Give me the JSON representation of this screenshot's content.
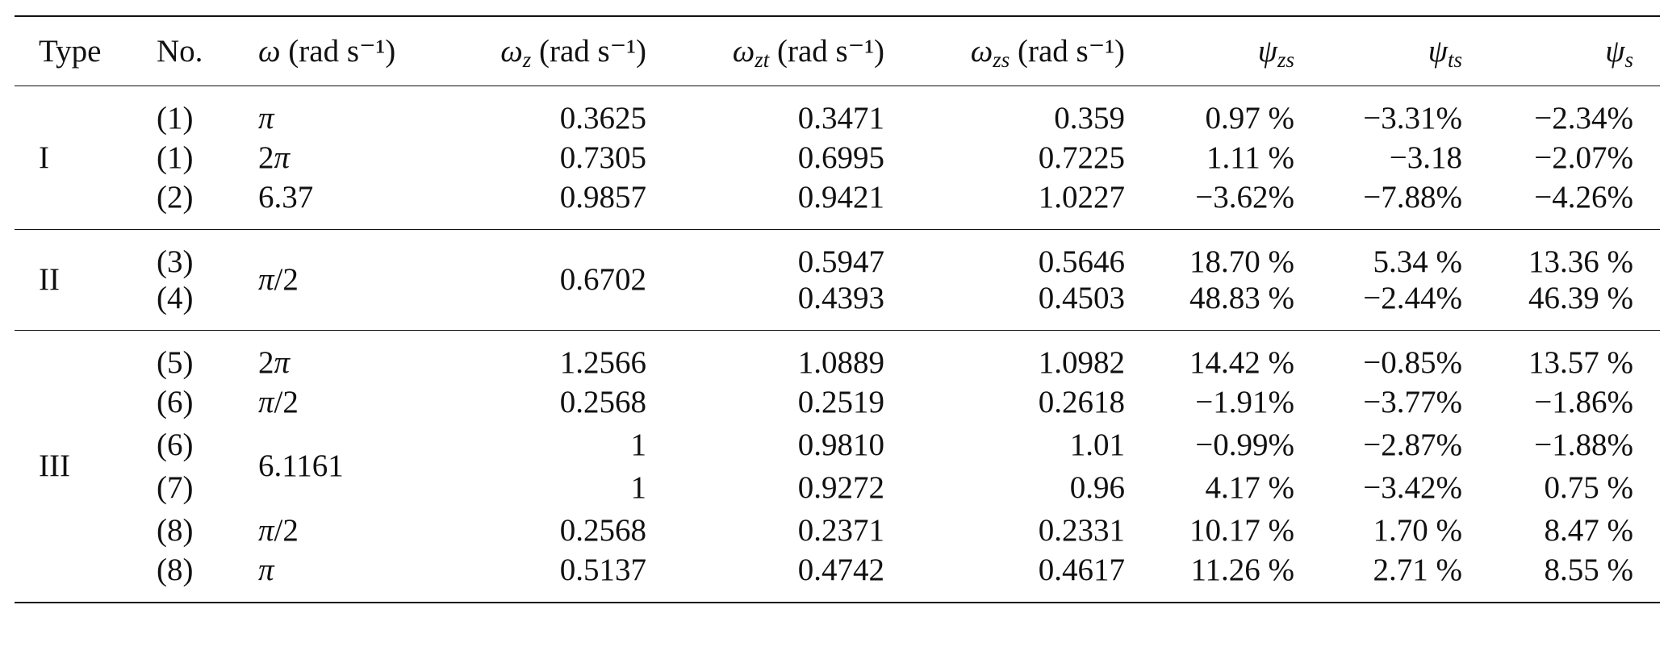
{
  "table": {
    "header": [
      "Type",
      "No.",
      {
        "symbol": "ω",
        "unit": "(rad s⁻¹)"
      },
      {
        "symbol": "ω",
        "sub": "z",
        "unit": "(rad s⁻¹)"
      },
      {
        "symbol": "ω",
        "sub": "zt",
        "unit": "(rad s⁻¹)"
      },
      {
        "symbol": "ω",
        "sub": "zs",
        "unit": "(rad s⁻¹)"
      },
      {
        "symbol": "ψ",
        "sub": "zs"
      },
      {
        "symbol": "ψ",
        "sub": "ts"
      },
      {
        "symbol": "ψ",
        "sub": "s"
      }
    ],
    "groups": [
      {
        "type": "I",
        "rows": [
          [
            "(1)",
            "π",
            "0.3625",
            "0.3471",
            "0.359",
            "0.97 %",
            "−3.31%",
            "−2.34%"
          ],
          [
            "(1)",
            "2π",
            "0.7305",
            "0.6995",
            "0.7225",
            "1.11 %",
            "−3.18",
            "−2.07%"
          ],
          [
            "(2)",
            "6.37",
            "0.9857",
            "0.9421",
            "1.0227",
            "−3.62%",
            "−7.88%",
            "−4.26%"
          ]
        ]
      },
      {
        "type": "II",
        "rows": [
          [
            "(3)",
            "π/2",
            "0.6702",
            "0.5947",
            "0.5646",
            "18.70 %",
            "5.34 %",
            "13.36 %"
          ],
          [
            "(4)",
            "0.4393",
            "0.4503",
            "48.83 %",
            "−2.44%",
            "46.39 %"
          ]
        ]
      },
      {
        "type": "III",
        "rows": [
          [
            "(5)",
            "2π",
            "1.2566",
            "1.0889",
            "1.0982",
            "14.42 %",
            "−0.85%",
            "13.57 %"
          ],
          [
            "(6)",
            "π/2",
            "0.2568",
            "0.2519",
            "0.2618",
            "−1.91%",
            "−3.77%",
            "−1.86%"
          ],
          [
            "(6)",
            "6.1161",
            "1",
            "0.9810",
            "1.01",
            "−0.99%",
            "−2.87%",
            "−1.88%"
          ],
          [
            "(7)",
            "1",
            "0.9272",
            "0.96",
            "4.17 %",
            "−3.42%",
            "0.75 %"
          ],
          [
            "(8)",
            "π/2",
            "0.2568",
            "0.2371",
            "0.2331",
            "10.17 %",
            "1.70 %",
            "8.47 %"
          ],
          [
            "(8)",
            "π",
            "0.5137",
            "0.4742",
            "0.4617",
            "11.26 %",
            "2.71 %",
            "8.55 %"
          ]
        ]
      }
    ]
  }
}
